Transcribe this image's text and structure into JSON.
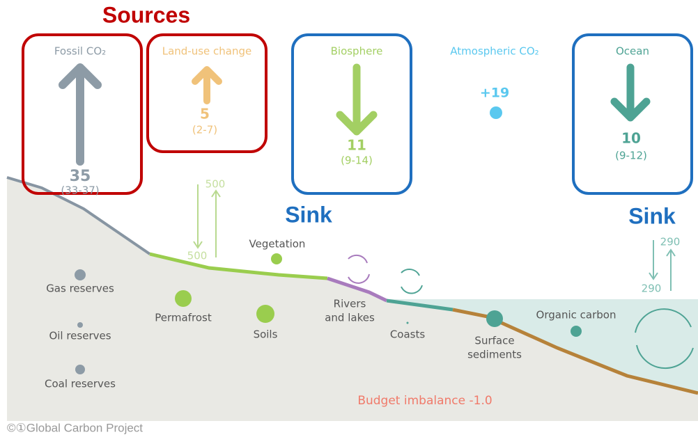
{
  "header": {
    "title": "Sources"
  },
  "sources": [
    {
      "label": "Fossil CO₂",
      "value": "35",
      "range": "(33-37)"
    },
    {
      "label": "Land-use change",
      "value": "5",
      "range": "(2-7)"
    }
  ],
  "sinks": [
    {
      "label": "Biosphere",
      "value": "11",
      "range": "(9-14)",
      "caption": "Sink"
    },
    {
      "label": "Ocean",
      "value": "10",
      "range": "(9-12)",
      "caption": "Sink"
    }
  ],
  "atmosphere": {
    "label": "Atmospheric CO₂",
    "value": "+19"
  },
  "land_fluxes": {
    "down": "500",
    "up": "500"
  },
  "ocean_fluxes": {
    "up": "290",
    "down": "290"
  },
  "reservoirs": [
    {
      "label": [
        "Vegetation"
      ]
    },
    {
      "label": [
        "Gas reserves"
      ]
    },
    {
      "label": [
        "Permafrost"
      ]
    },
    {
      "label": [
        "Soils"
      ]
    },
    {
      "label": [
        "Rivers",
        "and lakes"
      ]
    },
    {
      "label": [
        "Coasts"
      ]
    },
    {
      "label": [
        "Surface",
        "sediments"
      ]
    },
    {
      "label": [
        "Organic carbon"
      ]
    },
    {
      "label": [
        "Oil reserves"
      ]
    },
    {
      "label": [
        "Coal reserves"
      ]
    }
  ],
  "budget_imbalance": "Budget imbalance -1.0",
  "footer": "©①Global Carbon Project"
}
